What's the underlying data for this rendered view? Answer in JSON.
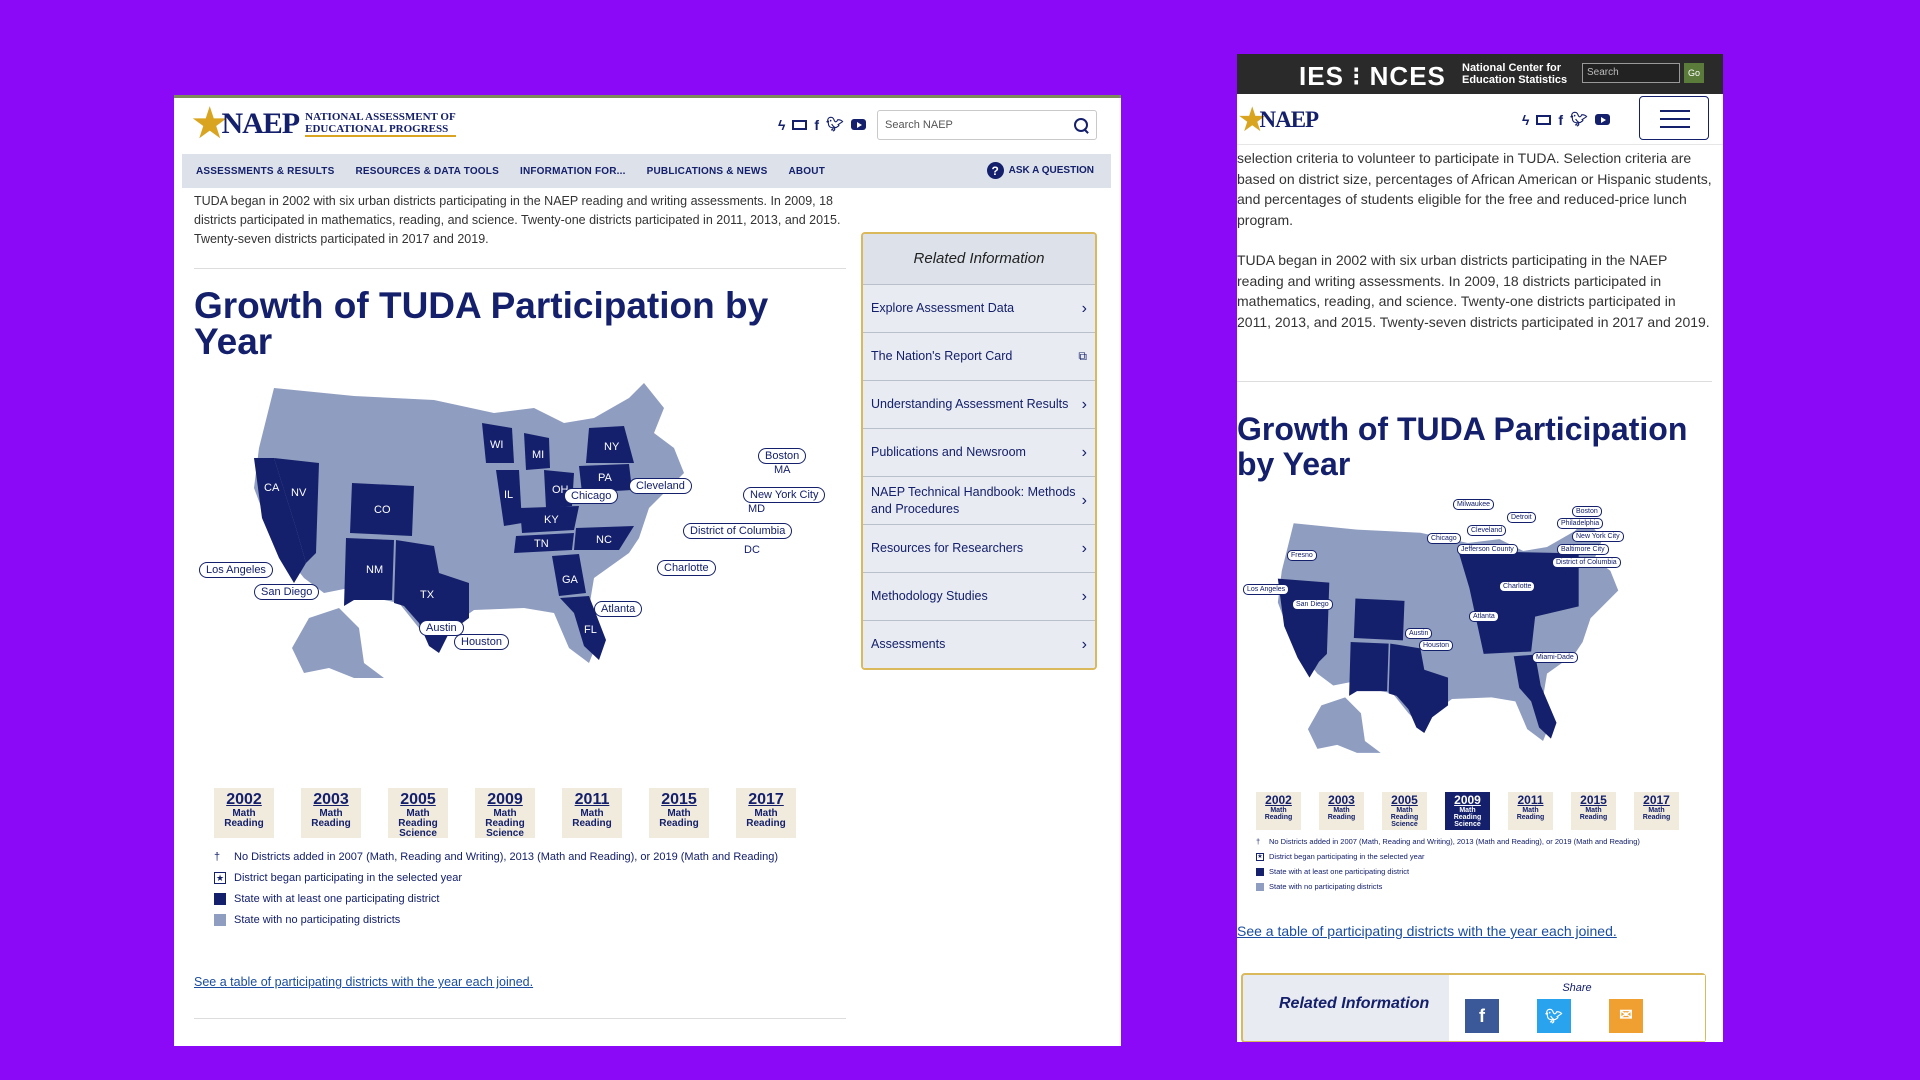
{
  "desktop": {
    "logo": {
      "word": "NAEP",
      "subtitle_line1": "National Assessment of",
      "subtitle_line2": "Educational Progress"
    },
    "search_placeholder": "Search NAEP",
    "nav": [
      "ASSESSMENTS & RESULTS",
      "RESOURCES & DATA TOOLS",
      "INFORMATION FOR...",
      "PUBLICATIONS & NEWS",
      "ABOUT"
    ],
    "ask": "ASK A QUESTION",
    "intro": "TUDA began in 2002 with six urban districts participating in the NAEP reading and writing assessments. In 2009, 18 districts participated in mathematics, reading, and science. Twenty-one districts participated in 2011, 2013, and 2015. Twenty-seven districts participated in 2017 and 2019.",
    "title": "Growth of TUDA Participation by Year",
    "states": [
      "CA",
      "NV",
      "CO",
      "NM",
      "TX",
      "WI",
      "MI",
      "IL",
      "OH",
      "PA",
      "NY",
      "KY",
      "TN",
      "NC",
      "GA",
      "FL"
    ],
    "districts": [
      "Boston",
      "MA",
      "Cleveland",
      "Chicago",
      "New York City",
      "MD",
      "District of Columbia",
      "DC",
      "Charlotte",
      "Los Angeles",
      "San Diego",
      "Atlanta",
      "Austin",
      "Houston"
    ],
    "years": [
      {
        "year": "2002",
        "subjects": [
          "Math",
          "Reading"
        ]
      },
      {
        "year": "2003",
        "subjects": [
          "Math",
          "Reading"
        ]
      },
      {
        "year": "2005",
        "subjects": [
          "Math",
          "Reading",
          "Science"
        ]
      },
      {
        "year": "2009",
        "subjects": [
          "Math",
          "Reading",
          "Science"
        ]
      },
      {
        "year": "2011",
        "subjects": [
          "Math",
          "Reading"
        ]
      },
      {
        "year": "2015",
        "subjects": [
          "Math",
          "Reading"
        ]
      },
      {
        "year": "2017",
        "subjects": [
          "Math",
          "Reading"
        ]
      }
    ],
    "legend": {
      "note_mark": "†",
      "note": "No Districts added in 2007 (Math, Reading and Writing), 2013 (Math and Reading), or 2019 (Math and Reading)",
      "began": "District began participating in the selected year",
      "with": "State with at least one participating district",
      "without": "State with no participating districts"
    },
    "table_link": "See a table of participating districts with the year each joined.",
    "related": {
      "heading": "Related Information",
      "items": [
        "Explore Assessment Data",
        "The Nation's Report Card",
        "Understanding Assessment Results",
        "Publications and Newsroom",
        "NAEP Technical Handbook: Methods and Procedures",
        "Resources for Researchers",
        "Methodology Studies",
        "Assessments"
      ]
    }
  },
  "mobile": {
    "ies": "IES",
    "nces": "NCES",
    "nces_sub_line1": "National Center for",
    "nces_sub_line2": "Education Statistics",
    "search_placeholder": "Search",
    "go": "Go",
    "logo_word": "NAEP",
    "para1": "selection criteria to volunteer to participate in TUDA. Selection criteria are based on district size, percentages of African American or Hispanic students, and percentages of students eligible for the free and reduced-price lunch program.",
    "para2": "TUDA began in 2002 with six urban districts participating in the NAEP reading and writing assessments. In 2009, 18 districts participated in mathematics, reading, and science. Twenty-one districts participated in 2011, 2013, and 2015. Twenty-seven districts participated in 2017 and 2019.",
    "title": "Growth of TUDA Participation by Year",
    "districts": [
      "Milwaukee",
      "Detroit",
      "Boston",
      "Philadelphia",
      "Cleveland",
      "New York City",
      "Chicago",
      "Baltimore City",
      "Jefferson County",
      "District of Columbia",
      "DC",
      "Fresno",
      "Charlotte",
      "Los Angeles",
      "San Diego",
      "Atlanta",
      "Austin",
      "Houston",
      "Miami-Dade"
    ],
    "years": [
      {
        "year": "2002",
        "subjects": [
          "Math",
          "Reading"
        ]
      },
      {
        "year": "2003",
        "subjects": [
          "Math",
          "Reading"
        ]
      },
      {
        "year": "2005",
        "subjects": [
          "Math",
          "Reading",
          "Science"
        ]
      },
      {
        "year": "2009",
        "subjects": [
          "Math",
          "Reading",
          "Science"
        ]
      },
      {
        "year": "2011",
        "subjects": [
          "Math",
          "Reading"
        ]
      },
      {
        "year": "2015",
        "subjects": [
          "Math",
          "Reading"
        ]
      },
      {
        "year": "2017",
        "subjects": [
          "Math",
          "Reading"
        ]
      }
    ],
    "active_year": "2009",
    "table_link": "See a table of participating districts with the year each joined.",
    "related_heading": "Related Information",
    "share_label": "Share"
  },
  "colors": {
    "background": "#8b09f6",
    "navy": "#14206b",
    "gold": "#d9a520",
    "state_light": "#8f9dc0"
  }
}
